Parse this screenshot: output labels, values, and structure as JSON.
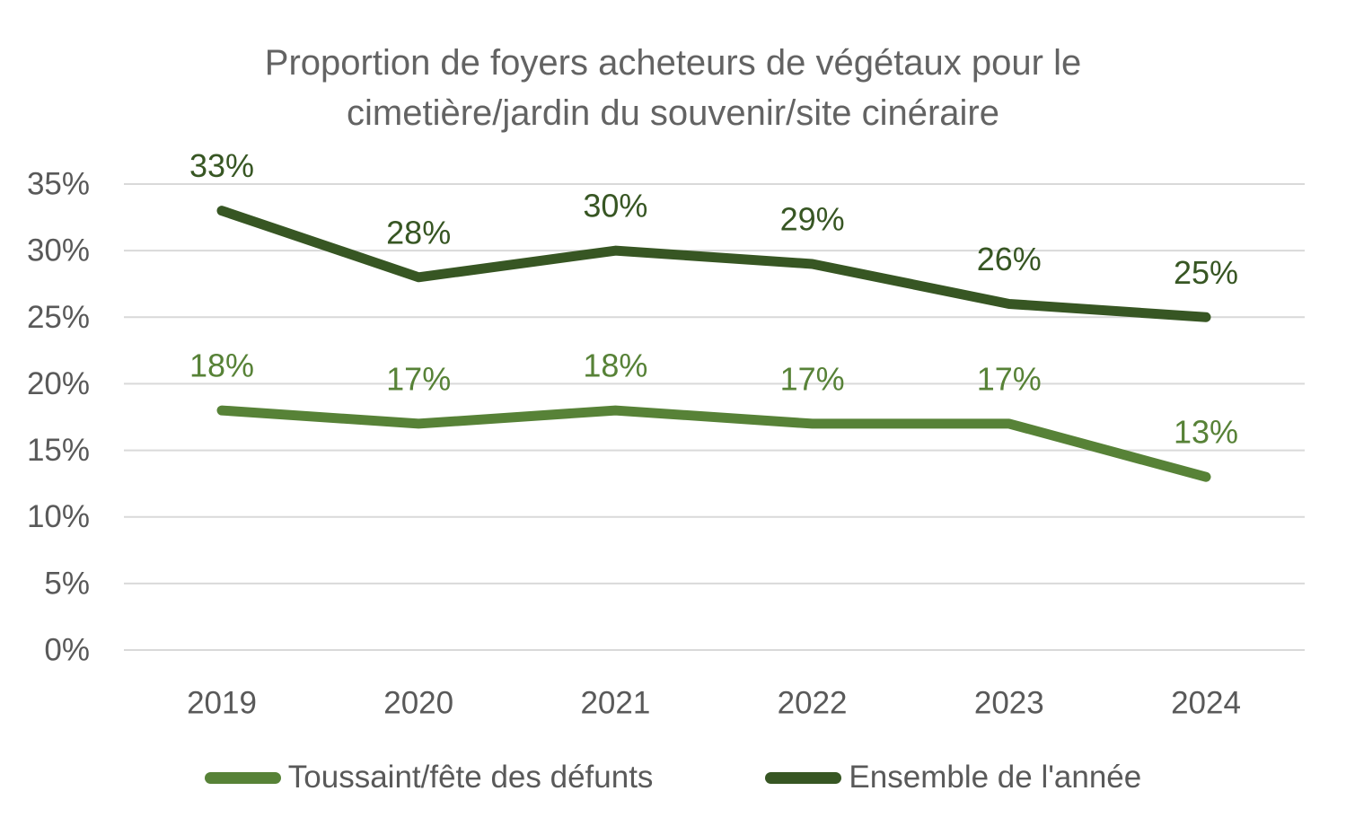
{
  "header": {
    "title_line1": "Proportion de foyers acheteurs de végétaux pour le",
    "title_line2": "cimetière/jardin du souvenir/site cinéraire"
  },
  "chart_data": {
    "type": "line",
    "title": "Proportion de foyers acheteurs de végétaux pour le cimetière/jardin du souvenir/site cinéraire",
    "categories": [
      "2019",
      "2020",
      "2021",
      "2022",
      "2023",
      "2024"
    ],
    "series": [
      {
        "name": "Toussaint/fête des défunts",
        "slug": "toussaint-fete-des-defunts",
        "values": [
          18,
          17,
          18,
          17,
          17,
          13
        ],
        "labels": [
          "18%",
          "17%",
          "18%",
          "17%",
          "17%",
          "13%"
        ],
        "color": "#578237"
      },
      {
        "name": "Ensemble de l'année",
        "slug": "ensemble-de-l-annee",
        "values": [
          33,
          28,
          30,
          29,
          26,
          25
        ],
        "labels": [
          "33%",
          "28%",
          "30%",
          "29%",
          "26%",
          "25%"
        ],
        "color": "#375623"
      }
    ],
    "xlabel": "",
    "ylabel": "",
    "ylim": [
      0,
      35
    ],
    "ytick_step": 5,
    "yticks": [
      "0%",
      "5%",
      "10%",
      "15%",
      "20%",
      "25%",
      "30%",
      "35%"
    ],
    "grid": true,
    "legend_position": "bottom"
  },
  "colors": {
    "background": "#FFFFFF",
    "title_text": "#636363",
    "axis_text": "#595959",
    "gridline": "#D9D9D9",
    "legend_text": "#595959"
  }
}
